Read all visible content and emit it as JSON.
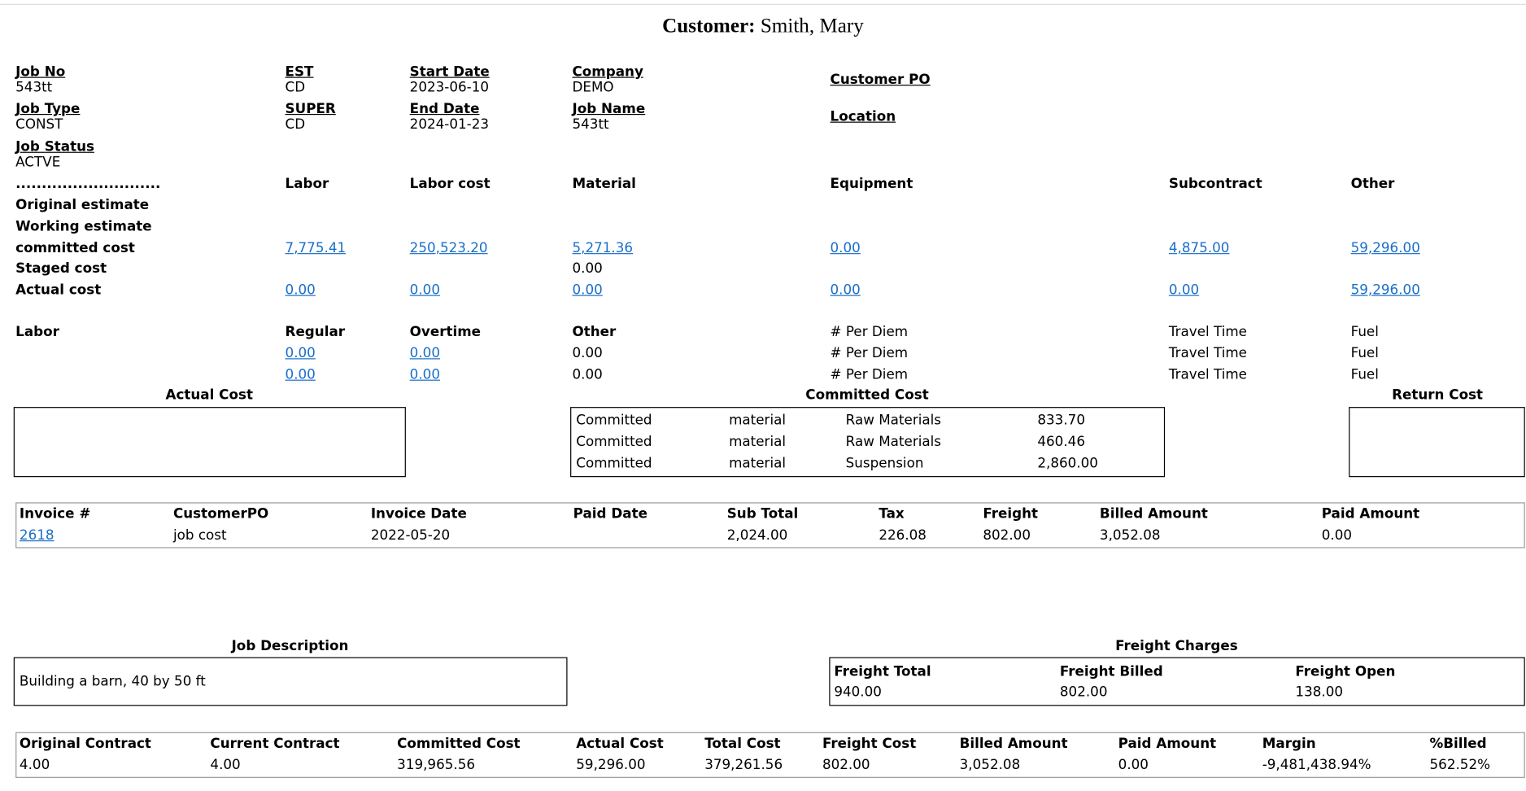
{
  "header": {
    "label": "Customer:",
    "name": "Smith, Mary"
  },
  "job_fields": [
    {
      "label": "Job No",
      "value": "543tt"
    },
    {
      "label": "EST",
      "value": "CD"
    },
    {
      "label": "Start Date",
      "value": "2023-06-10"
    },
    {
      "label": "Company",
      "value": "DEMO"
    },
    {
      "label": "Customer PO",
      "value": null
    },
    {
      "label": "Job Type",
      "value": "CONST"
    },
    {
      "label": "SUPER",
      "value": "CD"
    },
    {
      "label": "End Date",
      "value": "2024-01-23"
    },
    {
      "label": "Job Name",
      "value": "543tt"
    },
    {
      "label": "Location",
      "value": null
    },
    {
      "label": "Job Status",
      "value": "ACTVE"
    }
  ],
  "cost_table": {
    "columns": [
      "............................",
      "Labor",
      "Labor cost",
      "Material",
      "Equipment",
      "Subcontract",
      "Other"
    ],
    "rows": [
      {
        "label": "Original estimate",
        "cells": [
          null,
          null,
          null,
          null,
          null,
          null
        ],
        "link": [
          false,
          false,
          false,
          false,
          false,
          false
        ]
      },
      {
        "label": "Working estimate",
        "cells": [
          null,
          null,
          null,
          null,
          null,
          null
        ],
        "link": [
          false,
          false,
          false,
          false,
          false,
          false
        ]
      },
      {
        "label": "committed cost",
        "cells": [
          "7,775.41",
          "250,523.20",
          "5,271.36",
          "0.00",
          "4,875.00",
          "59,296.00"
        ],
        "link": [
          true,
          true,
          true,
          true,
          true,
          true
        ]
      },
      {
        "label": "Staged cost",
        "cells": [
          null,
          null,
          "0.00",
          null,
          null,
          null
        ],
        "link": [
          false,
          false,
          false,
          false,
          false,
          false
        ]
      },
      {
        "label": "Actual cost",
        "cells": [
          "0.00",
          "0.00",
          "0.00",
          "0.00",
          "0.00",
          "59,296.00"
        ],
        "link": [
          true,
          true,
          true,
          true,
          true,
          true
        ]
      }
    ]
  },
  "labor_table": {
    "columns": [
      "Labor",
      "Regular",
      "Overtime",
      "Other",
      "# Per Diem",
      "Travel Time",
      "Fuel"
    ],
    "rows": [
      {
        "cells": [
          "0.00",
          "0.00",
          "0.00",
          "# Per Diem",
          "Travel Time",
          "Fuel"
        ],
        "link": [
          true,
          true,
          false,
          false,
          false,
          false
        ]
      },
      {
        "cells": [
          "0.00",
          "0.00",
          "0.00",
          "# Per Diem",
          "Travel Time",
          "Fuel"
        ],
        "link": [
          true,
          true,
          false,
          false,
          false,
          false
        ]
      }
    ]
  },
  "actual_cost": {
    "title": "Actual Cost",
    "rows": []
  },
  "committed_cost": {
    "title": "Committed Cost",
    "rows": [
      [
        "Committed",
        "material",
        "Raw Materials",
        "833.70"
      ],
      [
        "Committed",
        "material",
        "Raw Materials",
        "460.46"
      ],
      [
        "Committed",
        "material",
        "Suspension",
        "2,860.00"
      ]
    ]
  },
  "return_cost": {
    "title": "Return Cost",
    "rows": []
  },
  "invoices": {
    "columns": [
      "Invoice #",
      "CustomerPO",
      "Invoice Date",
      "Paid Date",
      "Sub Total",
      "Tax",
      "Freight",
      "Billed Amount",
      "Paid Amount"
    ],
    "rows": [
      [
        "2618",
        "job cost",
        "2022-05-20",
        null,
        "2,024.00",
        "226.08",
        "802.00",
        "3,052.08",
        "0.00"
      ]
    ]
  },
  "job_description": {
    "title": "Job Description",
    "text": "Building a barn, 40 by 50 ft"
  },
  "freight_charges": {
    "title": "Freight Charges",
    "columns": [
      "Freight Total",
      "Freight Billed",
      "Freight Open"
    ],
    "values": [
      "940.00",
      "802.00",
      "138.00"
    ]
  },
  "summary": {
    "columns": [
      "Original Contract",
      "Current Contract",
      "Committed Cost",
      "Actual Cost",
      "Total Cost",
      "Freight Cost",
      "Billed Amount",
      "Paid Amount",
      "Margin",
      "%Billed"
    ],
    "values": [
      "4.00",
      "4.00",
      "319,965.56",
      "59,296.00",
      "379,261.56",
      "802.00",
      "3,052.08",
      "0.00",
      "-9,481,438.94%",
      "562.52%"
    ]
  }
}
